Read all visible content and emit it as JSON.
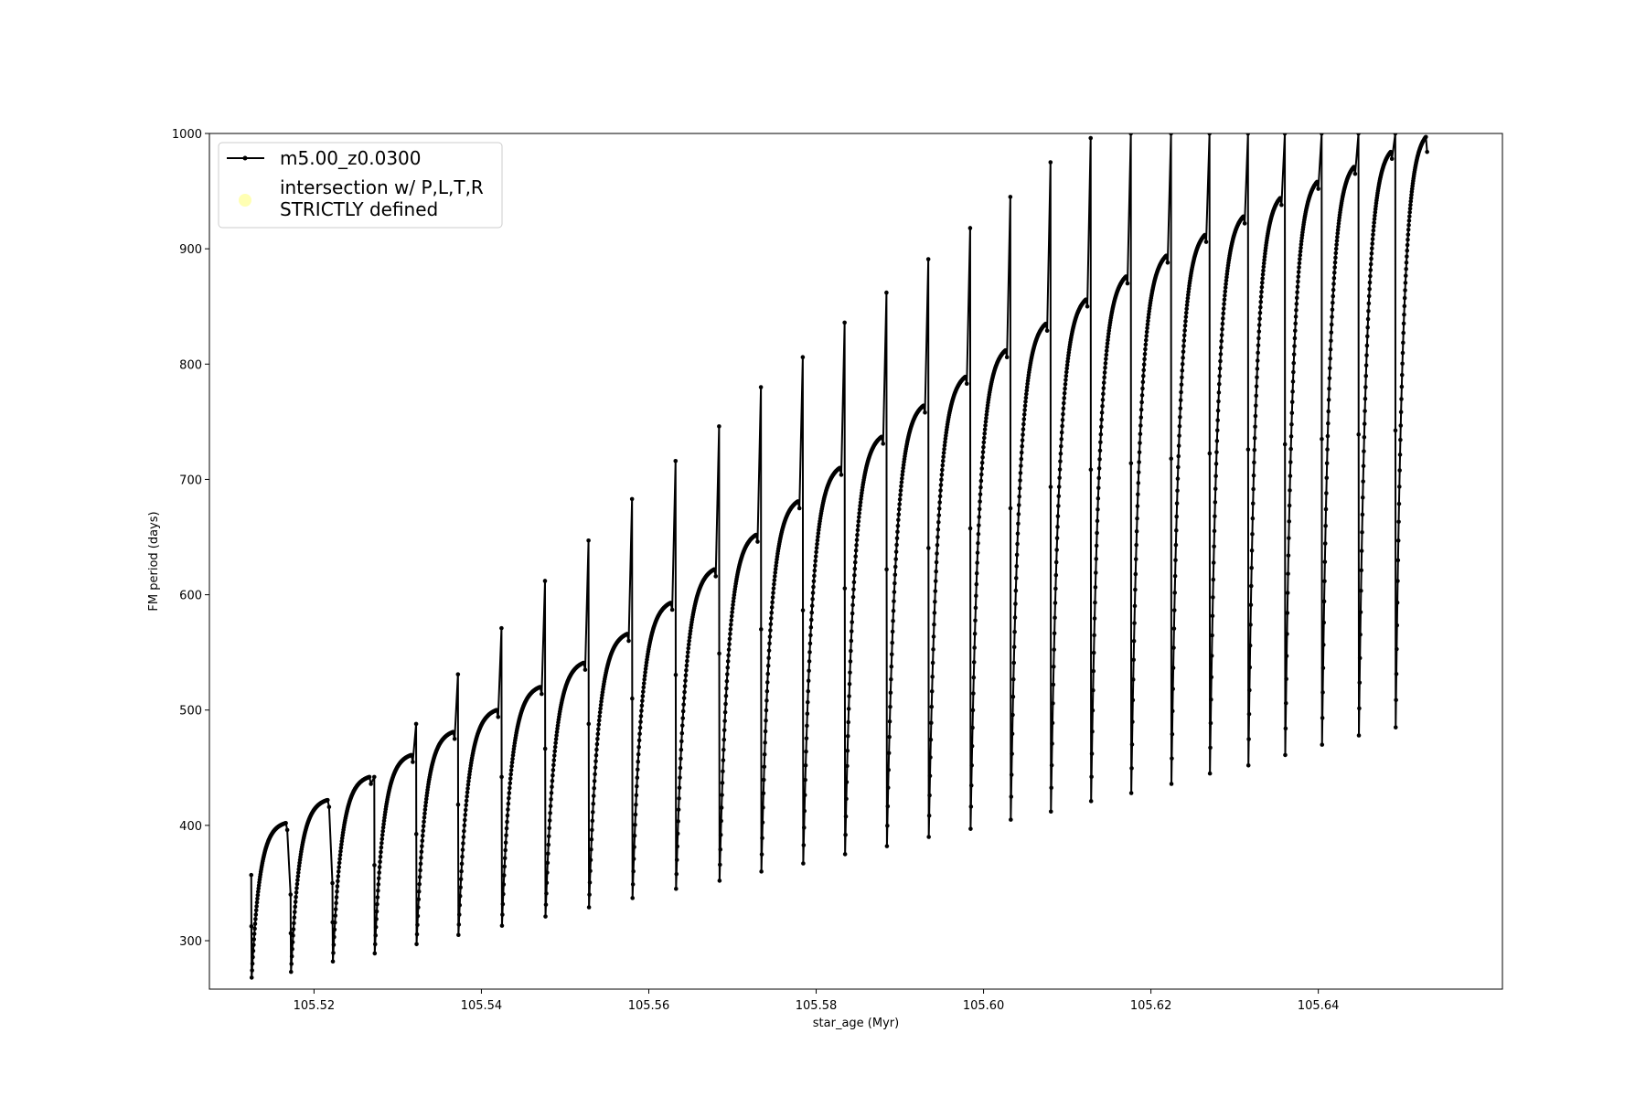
{
  "chart_data": {
    "type": "line",
    "title": "",
    "xlabel": "star_age (Myr)",
    "ylabel": "FM period (days)",
    "xlim": [
      105.5075,
      105.662
    ],
    "ylim": [
      258,
      1000
    ],
    "xticks": [
      105.52,
      105.54,
      105.56,
      105.58,
      105.6,
      105.62,
      105.64
    ],
    "xtick_labels": [
      "105.52",
      "105.54",
      "105.56",
      "105.58",
      "105.60",
      "105.62",
      "105.64"
    ],
    "yticks": [
      300,
      400,
      500,
      600,
      700,
      800,
      900,
      1000
    ],
    "ytick_labels": [
      "300",
      "400",
      "500",
      "600",
      "700",
      "800",
      "900",
      "1000"
    ],
    "grid": false,
    "legend_position": "top-left",
    "legend": [
      {
        "label": "m5.00_z0.0300",
        "marker": "line-dot",
        "color": "#000000"
      },
      {
        "label_lines": [
          "intersection w/ P,L,T,R",
          "STRICTLY defined"
        ],
        "marker": "circle",
        "color": "#ffffb3"
      }
    ],
    "series": [
      {
        "name": "m5.00_z0.0300",
        "color": "#000000",
        "cycles": [
          {
            "start": 105.5125,
            "end": 105.5168,
            "min": 268,
            "peak": 402,
            "spike": 357
          },
          {
            "start": 105.5172,
            "end": 105.5218,
            "min": 273,
            "peak": 422,
            "spike": 340
          },
          {
            "start": 105.5222,
            "end": 105.5268,
            "min": 282,
            "peak": 442,
            "spike": 350
          },
          {
            "start": 105.5272,
            "end": 105.5318,
            "min": 289,
            "peak": 461,
            "spike": 442
          },
          {
            "start": 105.5322,
            "end": 105.5368,
            "min": 297,
            "peak": 481,
            "spike": 488
          },
          {
            "start": 105.5372,
            "end": 105.542,
            "min": 305,
            "peak": 500,
            "spike": 531
          },
          {
            "start": 105.5424,
            "end": 105.5472,
            "min": 313,
            "peak": 520,
            "spike": 571
          },
          {
            "start": 105.5476,
            "end": 105.5524,
            "min": 321,
            "peak": 541,
            "spike": 612
          },
          {
            "start": 105.5528,
            "end": 105.5576,
            "min": 329,
            "peak": 566,
            "spike": 647
          },
          {
            "start": 105.558,
            "end": 105.5628,
            "min": 337,
            "peak": 593,
            "spike": 683
          },
          {
            "start": 105.5632,
            "end": 105.568,
            "min": 345,
            "peak": 622,
            "spike": 716
          },
          {
            "start": 105.5684,
            "end": 105.573,
            "min": 352,
            "peak": 652,
            "spike": 746
          },
          {
            "start": 105.5734,
            "end": 105.578,
            "min": 360,
            "peak": 681,
            "spike": 780
          },
          {
            "start": 105.5784,
            "end": 105.583,
            "min": 367,
            "peak": 710,
            "spike": 806
          },
          {
            "start": 105.5834,
            "end": 105.588,
            "min": 375,
            "peak": 737,
            "spike": 836
          },
          {
            "start": 105.5884,
            "end": 105.593,
            "min": 382,
            "peak": 764,
            "spike": 862
          },
          {
            "start": 105.5934,
            "end": 105.598,
            "min": 390,
            "peak": 789,
            "spike": 891
          },
          {
            "start": 105.5984,
            "end": 105.6028,
            "min": 397,
            "peak": 812,
            "spike": 918
          },
          {
            "start": 105.6032,
            "end": 105.6076,
            "min": 405,
            "peak": 835,
            "spike": 945
          },
          {
            "start": 105.608,
            "end": 105.6124,
            "min": 412,
            "peak": 856,
            "spike": 975
          },
          {
            "start": 105.6128,
            "end": 105.6172,
            "min": 421,
            "peak": 876,
            "spike": 996
          },
          {
            "start": 105.6176,
            "end": 105.622,
            "min": 428,
            "peak": 894,
            "spike": 1000
          },
          {
            "start": 105.6224,
            "end": 105.6266,
            "min": 436,
            "peak": 912,
            "spike": 1000
          },
          {
            "start": 105.627,
            "end": 105.6312,
            "min": 445,
            "peak": 928,
            "spike": 1000
          },
          {
            "start": 105.6316,
            "end": 105.6356,
            "min": 452,
            "peak": 944,
            "spike": 1000
          },
          {
            "start": 105.636,
            "end": 105.64,
            "min": 461,
            "peak": 958,
            "spike": 1000
          },
          {
            "start": 105.6404,
            "end": 105.6444,
            "min": 470,
            "peak": 971,
            "spike": 1000
          },
          {
            "start": 105.6448,
            "end": 105.6488,
            "min": 478,
            "peak": 984,
            "spike": 1000
          },
          {
            "start": 105.6492,
            "end": 105.653,
            "min": 485,
            "peak": 997,
            "spike": 1000,
            "final": 984
          }
        ]
      }
    ]
  }
}
